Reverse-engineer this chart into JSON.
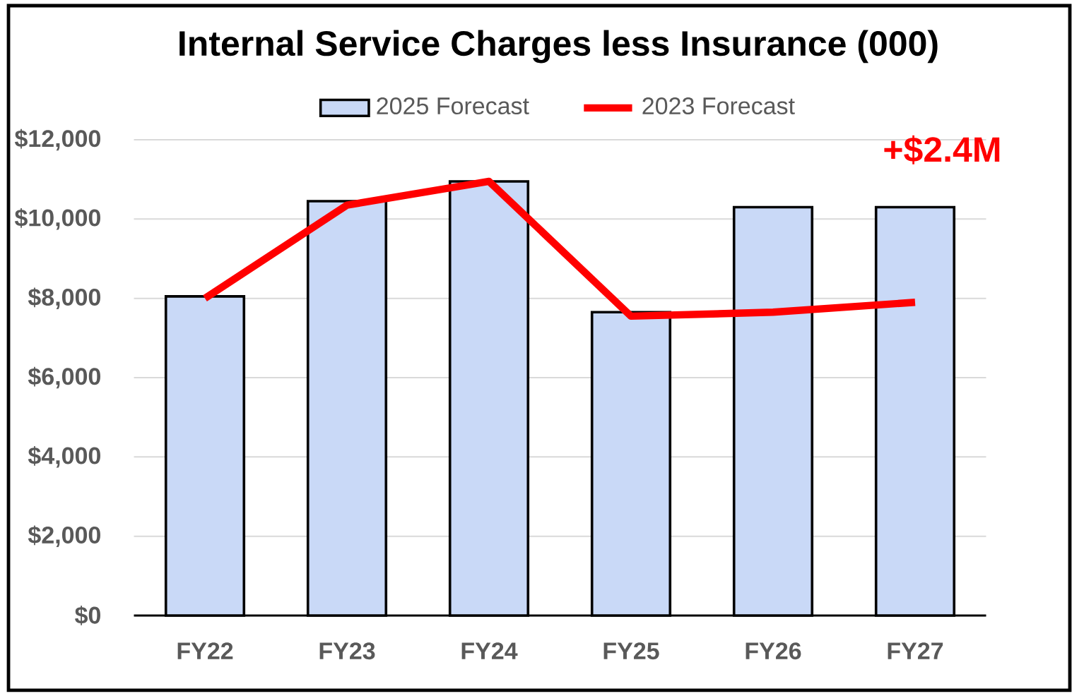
{
  "chart_data": {
    "type": "bar",
    "title": "Internal Service Charges less Insurance (000)",
    "categories": [
      "FY22",
      "FY23",
      "FY24",
      "FY25",
      "FY26",
      "FY27"
    ],
    "series": [
      {
        "name": "2025 Forecast",
        "color": "#c9d9f7",
        "values": [
          8050,
          10450,
          10950,
          7650,
          10300,
          10300
        ]
      },
      {
        "name": "2023 Forecast",
        "type": "line",
        "color": "#ff0000",
        "values": [
          8000,
          10350,
          10950,
          7550,
          7650,
          7900
        ]
      }
    ],
    "ylim": [
      0,
      12000
    ],
    "yticks": [
      {
        "value": 0,
        "label": "$0"
      },
      {
        "value": 2000,
        "label": "$2,000"
      },
      {
        "value": 4000,
        "label": "$4,000"
      },
      {
        "value": 6000,
        "label": "$6,000"
      },
      {
        "value": 8000,
        "label": "$8,000"
      },
      {
        "value": 10000,
        "label": "$10,000"
      },
      {
        "value": 12000,
        "label": "$12,000"
      }
    ],
    "grid": "y",
    "legend": "top",
    "marker": "none",
    "line_style": "solid",
    "annotations": [
      "+$2.4M"
    ]
  }
}
